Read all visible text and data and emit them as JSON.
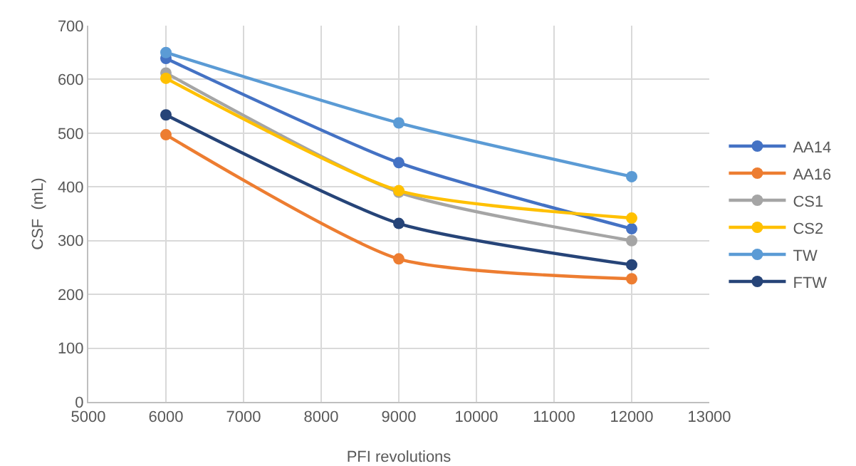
{
  "chart_data": {
    "type": "line",
    "xlabel": "PFI revolutions",
    "ylabel": "CSF  (mL)",
    "x": [
      6000,
      9000,
      12000
    ],
    "series": [
      {
        "name": "AA14",
        "color": "#4472c4",
        "values": [
          639,
          445,
          322
        ]
      },
      {
        "name": "AA16",
        "color": "#ed7d31",
        "values": [
          497,
          266,
          229
        ]
      },
      {
        "name": "CS1",
        "color": "#a5a5a5",
        "values": [
          612,
          390,
          300
        ]
      },
      {
        "name": "CS2",
        "color": "#ffc000",
        "values": [
          602,
          393,
          342
        ]
      },
      {
        "name": "TW",
        "color": "#5b9bd5",
        "values": [
          650,
          519,
          419
        ]
      },
      {
        "name": "FTW",
        "color": "#264478",
        "values": [
          534,
          332,
          255
        ]
      }
    ],
    "xlim": [
      5000,
      13000
    ],
    "xticks": [
      5000,
      6000,
      7000,
      8000,
      9000,
      10000,
      11000,
      12000,
      13000
    ],
    "ylim": [
      0,
      700
    ],
    "yticks": [
      0,
      100,
      200,
      300,
      400,
      500,
      600,
      700
    ],
    "grid": true,
    "legend": "right",
    "marker": "circle",
    "line_style": "solid"
  }
}
